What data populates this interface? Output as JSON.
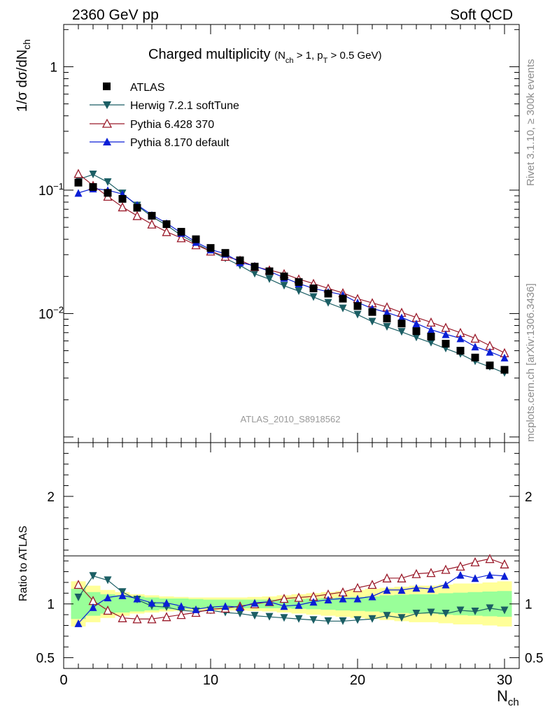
{
  "header": {
    "left": "2360 GeV pp",
    "right": "Soft QCD"
  },
  "side_labels": {
    "top": "Rivet 3.1.10, ≥ 300k events",
    "bottom": "mcplots.cern.ch [arXiv:1306.3436]"
  },
  "watermark": "ATLAS_2010_S8918562",
  "chart_data": {
    "type": "line",
    "title_main": "Charged multiplicity",
    "title_cuts": {
      "open": "(N",
      "sub1": "ch",
      "mid": " > 1, p",
      "sub2": "T",
      "close": " > 0.5 GeV)"
    },
    "ylabel": {
      "pre": "1/σ dσ/dN",
      "sub": "ch"
    },
    "xlabel": {
      "main": "N",
      "sub": "ch"
    },
    "xlim": [
      0,
      31
    ],
    "ylim_log": [
      0.0009,
      2.2
    ],
    "yticks_main": [
      {
        "value": 1,
        "label": "1",
        "exp": ""
      },
      {
        "value": 0.1,
        "label": "10",
        "exp": "−1"
      },
      {
        "value": 0.01,
        "label": "10",
        "exp": "−2"
      }
    ],
    "ratio": {
      "ylabel": "Ratio to ATLAS",
      "ylim": [
        0.4,
        2.5
      ],
      "yticks": [
        0.5,
        1,
        2
      ]
    },
    "xticks": [
      0,
      10,
      20,
      30
    ],
    "x": [
      1,
      2,
      3,
      4,
      5,
      6,
      7,
      8,
      9,
      10,
      11,
      12,
      13,
      14,
      15,
      16,
      17,
      18,
      19,
      20,
      21,
      22,
      23,
      24,
      25,
      26,
      27,
      28,
      29,
      30
    ],
    "series": [
      {
        "name": "ATLAS",
        "color": "#000000",
        "marker": "square",
        "values": [
          0.115,
          0.106,
          0.095,
          0.085,
          0.072,
          0.062,
          0.053,
          0.046,
          0.04,
          0.034,
          0.031,
          0.027,
          0.024,
          0.022,
          0.02,
          0.018,
          0.016,
          0.0145,
          0.0132,
          0.0115,
          0.0103,
          0.0091,
          0.0083,
          0.0072,
          0.0065,
          0.0057,
          0.005,
          0.0044,
          0.0038,
          0.0035
        ]
      },
      {
        "name": "Herwig 7.2.1 softTune",
        "color": "#1b5e64",
        "marker": "triangle-down",
        "values": [
          0.122,
          0.134,
          0.116,
          0.094,
          0.075,
          0.061,
          0.052,
          0.043,
          0.037,
          0.032,
          0.028,
          0.0245,
          0.021,
          0.019,
          0.0168,
          0.0152,
          0.0136,
          0.0122,
          0.011,
          0.0098,
          0.0086,
          0.0078,
          0.0071,
          0.0064,
          0.0058,
          0.0052,
          0.0047,
          0.0041,
          0.0037,
          0.0033
        ]
      },
      {
        "name": "Pythia 6.428 370",
        "color": "#9a1a2a",
        "marker": "triangle-up-open",
        "values": [
          0.136,
          0.109,
          0.089,
          0.073,
          0.062,
          0.053,
          0.046,
          0.041,
          0.036,
          0.032,
          0.029,
          0.027,
          0.024,
          0.0225,
          0.021,
          0.019,
          0.0175,
          0.016,
          0.0147,
          0.0132,
          0.0122,
          0.0113,
          0.0102,
          0.0093,
          0.0085,
          0.0077,
          0.007,
          0.0063,
          0.0055,
          0.0048
        ]
      },
      {
        "name": "Pythia 8.170 default",
        "color": "#0a1fd6",
        "marker": "triangle-up",
        "values": [
          0.095,
          0.103,
          0.1,
          0.093,
          0.076,
          0.063,
          0.054,
          0.045,
          0.038,
          0.033,
          0.0305,
          0.026,
          0.0243,
          0.022,
          0.0195,
          0.0175,
          0.016,
          0.015,
          0.0142,
          0.0123,
          0.011,
          0.0102,
          0.0093,
          0.0083,
          0.0074,
          0.0068,
          0.0063,
          0.0054,
          0.0049,
          0.0044
        ]
      }
    ],
    "ratios": {
      "Herwig 7.2.1 softTune": [
        1.06,
        1.26,
        1.22,
        1.11,
        1.04,
        0.98,
        0.97,
        0.94,
        0.93,
        0.94,
        0.92,
        0.91,
        0.89,
        0.88,
        0.87,
        0.86,
        0.85,
        0.84,
        0.84,
        0.85,
        0.86,
        0.89,
        0.87,
        0.91,
        0.92,
        0.91,
        0.94,
        0.93,
        0.96,
        0.94
      ],
      "Pythia 6.428 370": [
        1.18,
        1.03,
        0.94,
        0.87,
        0.86,
        0.86,
        0.88,
        0.9,
        0.92,
        0.95,
        0.96,
        0.98,
        1.0,
        1.02,
        1.05,
        1.06,
        1.07,
        1.09,
        1.11,
        1.15,
        1.18,
        1.24,
        1.24,
        1.28,
        1.29,
        1.32,
        1.35,
        1.39,
        1.42,
        1.37
      ],
      "Pythia 8.170 default": [
        0.82,
        0.97,
        1.06,
        1.08,
        1.05,
        1.01,
        1.01,
        0.98,
        0.95,
        0.97,
        0.98,
        0.97,
        1.01,
        1.02,
        0.98,
        0.99,
        1.02,
        1.04,
        1.05,
        1.05,
        1.07,
        1.13,
        1.13,
        1.15,
        1.14,
        1.18,
        1.27,
        1.24,
        1.27,
        1.26
      ]
    },
    "bands": {
      "green_half": [
        0.14,
        0.11,
        0.09,
        0.08,
        0.07,
        0.06,
        0.05,
        0.05,
        0.045,
        0.04,
        0.04,
        0.04,
        0.04,
        0.04,
        0.04,
        0.045,
        0.05,
        0.055,
        0.06,
        0.065,
        0.07,
        0.08,
        0.085,
        0.09,
        0.09,
        0.1,
        0.105,
        0.11,
        0.115,
        0.12
      ],
      "yellow_half": [
        0.21,
        0.17,
        0.13,
        0.11,
        0.09,
        0.08,
        0.07,
        0.065,
        0.06,
        0.06,
        0.06,
        0.06,
        0.065,
        0.07,
        0.08,
        0.09,
        0.1,
        0.11,
        0.12,
        0.13,
        0.14,
        0.15,
        0.16,
        0.17,
        0.17,
        0.18,
        0.19,
        0.19,
        0.2,
        0.21
      ]
    }
  }
}
